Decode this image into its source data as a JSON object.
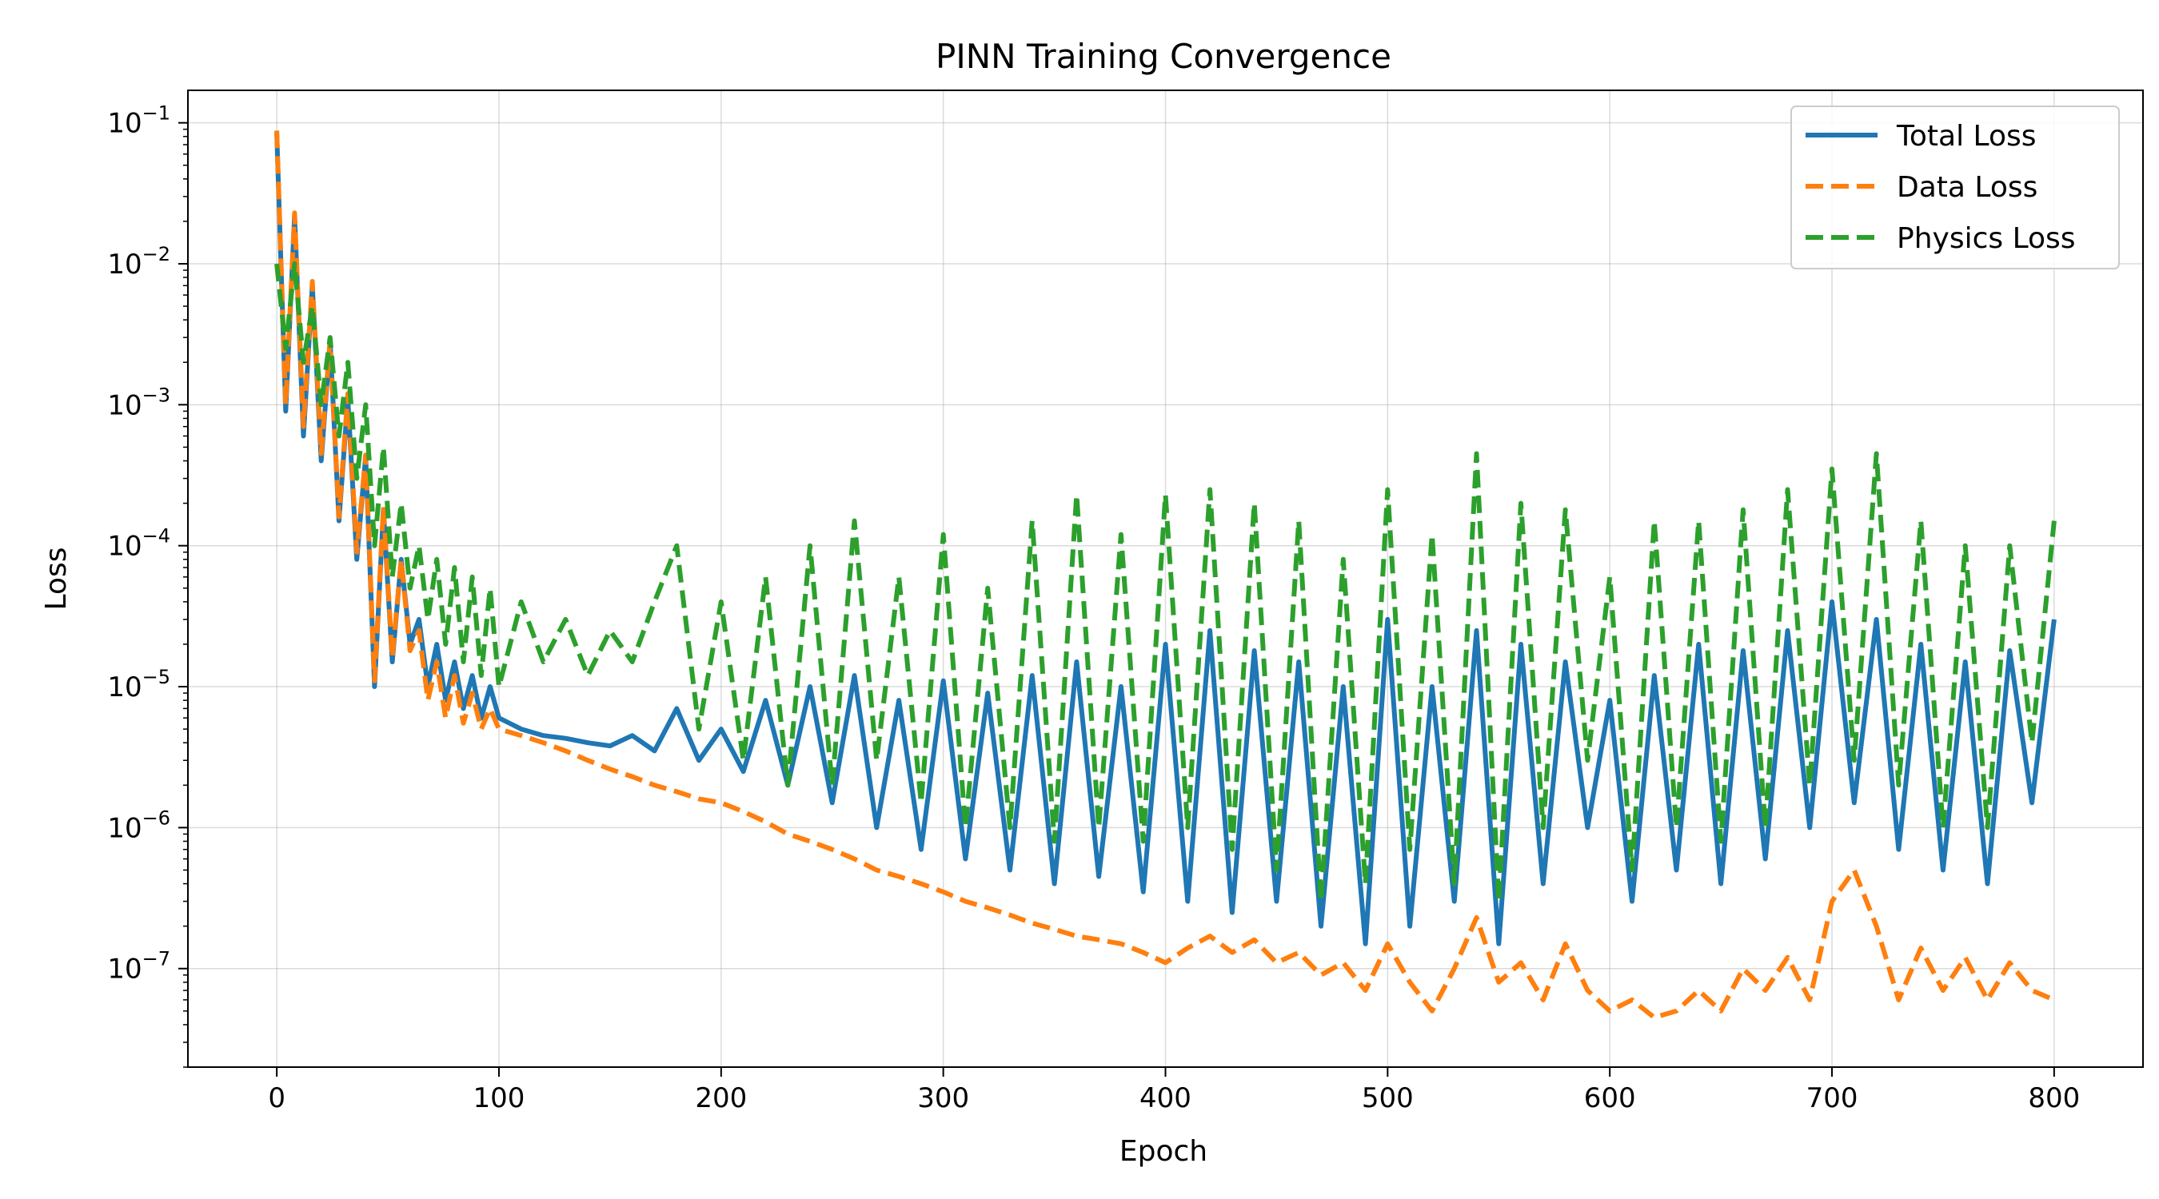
{
  "chart_data": {
    "type": "line",
    "title": "PINN Training Convergence",
    "xlabel": "Epoch",
    "ylabel": "Loss",
    "xlim": [
      -40,
      840
    ],
    "ylim": [
      2e-08,
      0.17
    ],
    "yscale": "log",
    "grid": true,
    "legend_position": "top-right",
    "x_ticks": [
      0,
      100,
      200,
      300,
      400,
      500,
      600,
      700,
      800
    ],
    "x_tick_labels": [
      "0",
      "100",
      "200",
      "300",
      "400",
      "500",
      "600",
      "700",
      "800"
    ],
    "y_ticks": [
      1e-07,
      1e-06,
      1e-05,
      0.0001,
      0.001,
      0.01,
      0.1
    ],
    "y_tick_labels": [
      {
        "base": "10",
        "exp": "−7"
      },
      {
        "base": "10",
        "exp": "−6"
      },
      {
        "base": "10",
        "exp": "−5"
      },
      {
        "base": "10",
        "exp": "−4"
      },
      {
        "base": "10",
        "exp": "−3"
      },
      {
        "base": "10",
        "exp": "−2"
      },
      {
        "base": "10",
        "exp": "−1"
      }
    ],
    "series": [
      {
        "name": "Total Loss",
        "color": "#1f77b4",
        "style": "solid",
        "x": [
          0,
          4,
          8,
          12,
          16,
          20,
          24,
          28,
          32,
          36,
          40,
          44,
          48,
          52,
          56,
          60,
          64,
          68,
          72,
          76,
          80,
          84,
          88,
          92,
          96,
          100,
          110,
          120,
          130,
          140,
          150,
          160,
          170,
          180,
          190,
          200,
          210,
          220,
          230,
          240,
          250,
          260,
          270,
          280,
          290,
          300,
          310,
          320,
          330,
          340,
          350,
          360,
          370,
          380,
          390,
          400,
          410,
          420,
          430,
          440,
          450,
          460,
          470,
          480,
          490,
          500,
          510,
          520,
          530,
          540,
          550,
          560,
          570,
          580,
          590,
          600,
          610,
          620,
          630,
          640,
          650,
          660,
          670,
          680,
          690,
          700,
          710,
          720,
          730,
          740,
          750,
          760,
          770,
          780,
          790,
          800
        ],
        "y": [
          0.085,
          0.0009,
          0.022,
          0.0006,
          0.007,
          0.0004,
          0.0028,
          0.00015,
          0.0011,
          8e-05,
          0.00043,
          1e-05,
          0.00018,
          1.5e-05,
          8e-05,
          2e-05,
          3e-05,
          1e-05,
          2e-05,
          8e-06,
          1.5e-05,
          7e-06,
          1.2e-05,
          6e-06,
          1e-05,
          6e-06,
          5e-06,
          4.5e-06,
          4.3e-06,
          4e-06,
          3.8e-06,
          4.5e-06,
          3.5e-06,
          7e-06,
          3e-06,
          5e-06,
          2.5e-06,
          8e-06,
          2e-06,
          1e-05,
          1.5e-06,
          1.2e-05,
          1e-06,
          8e-06,
          7e-07,
          1.1e-05,
          6e-07,
          9e-06,
          5e-07,
          1.2e-05,
          4e-07,
          1.5e-05,
          4.5e-07,
          1e-05,
          3.5e-07,
          2e-05,
          3e-07,
          2.5e-05,
          2.5e-07,
          1.8e-05,
          3e-07,
          1.5e-05,
          2e-07,
          1e-05,
          1.5e-07,
          3e-05,
          2e-07,
          1e-05,
          3e-07,
          2.5e-05,
          1.5e-07,
          2e-05,
          4e-07,
          1.5e-05,
          1e-06,
          8e-06,
          3e-07,
          1.2e-05,
          5e-07,
          2e-05,
          4e-07,
          1.8e-05,
          6e-07,
          2.5e-05,
          1e-06,
          4e-05,
          1.5e-06,
          3e-05,
          7e-07,
          2e-05,
          5e-07,
          1.5e-05,
          4e-07,
          1.8e-05,
          1.5e-06,
          3e-05
        ]
      },
      {
        "name": "Data Loss",
        "color": "#ff7f0e",
        "style": "dashed",
        "x": [
          0,
          4,
          8,
          12,
          16,
          20,
          24,
          28,
          32,
          36,
          40,
          44,
          48,
          52,
          56,
          60,
          64,
          68,
          72,
          76,
          80,
          84,
          88,
          92,
          96,
          100,
          110,
          120,
          130,
          140,
          150,
          160,
          170,
          180,
          190,
          200,
          210,
          220,
          230,
          240,
          250,
          260,
          270,
          280,
          290,
          300,
          310,
          320,
          330,
          340,
          350,
          360,
          370,
          380,
          390,
          400,
          410,
          420,
          430,
          440,
          450,
          460,
          470,
          480,
          490,
          500,
          510,
          520,
          530,
          540,
          550,
          560,
          570,
          580,
          590,
          600,
          610,
          620,
          630,
          640,
          650,
          660,
          670,
          680,
          690,
          700,
          710,
          720,
          730,
          740,
          750,
          760,
          770,
          780,
          790,
          800
        ],
        "y": [
          0.088,
          0.001,
          0.023,
          0.0007,
          0.0075,
          0.00045,
          0.0029,
          0.00016,
          0.0012,
          9e-05,
          0.00044,
          1.1e-05,
          0.00019,
          1.6e-05,
          8e-05,
          1.8e-05,
          2.5e-05,
          8e-06,
          1.5e-05,
          6e-06,
          1.2e-05,
          5.5e-06,
          9e-06,
          5e-06,
          7e-06,
          5e-06,
          4.5e-06,
          4e-06,
          3.5e-06,
          3e-06,
          2.6e-06,
          2.3e-06,
          2e-06,
          1.8e-06,
          1.6e-06,
          1.5e-06,
          1.3e-06,
          1.1e-06,
          9e-07,
          8e-07,
          7e-07,
          6e-07,
          5e-07,
          4.5e-07,
          4e-07,
          3.5e-07,
          3e-07,
          2.7e-07,
          2.4e-07,
          2.1e-07,
          1.9e-07,
          1.7e-07,
          1.6e-07,
          1.5e-07,
          1.3e-07,
          1.1e-07,
          1.4e-07,
          1.7e-07,
          1.3e-07,
          1.6e-07,
          1.1e-07,
          1.3e-07,
          9e-08,
          1.1e-07,
          7e-08,
          1.5e-07,
          8e-08,
          5e-08,
          1e-07,
          2.3e-07,
          8e-08,
          1.1e-07,
          6e-08,
          1.5e-07,
          7e-08,
          5e-08,
          6e-08,
          4.5e-08,
          5e-08,
          7e-08,
          5e-08,
          1e-07,
          7e-08,
          1.2e-07,
          6e-08,
          3e-07,
          5e-07,
          2e-07,
          6e-08,
          1.4e-07,
          7e-08,
          1.2e-07,
          6e-08,
          1.1e-07,
          7e-08,
          6e-08
        ]
      },
      {
        "name": "Physics Loss",
        "color": "#2ca02c",
        "style": "dashed",
        "x": [
          0,
          4,
          8,
          12,
          16,
          20,
          24,
          28,
          32,
          36,
          40,
          44,
          48,
          52,
          56,
          60,
          64,
          68,
          72,
          76,
          80,
          84,
          88,
          92,
          96,
          100,
          110,
          120,
          130,
          140,
          150,
          160,
          170,
          180,
          190,
          200,
          210,
          220,
          230,
          240,
          250,
          260,
          270,
          280,
          290,
          300,
          310,
          320,
          330,
          340,
          350,
          360,
          370,
          380,
          390,
          400,
          410,
          420,
          430,
          440,
          450,
          460,
          470,
          480,
          490,
          500,
          510,
          520,
          530,
          540,
          550,
          560,
          570,
          580,
          590,
          600,
          610,
          620,
          630,
          640,
          650,
          660,
          670,
          680,
          690,
          700,
          710,
          720,
          730,
          740,
          750,
          760,
          770,
          780,
          790,
          800
        ],
        "y": [
          0.01,
          0.0025,
          0.01,
          0.002,
          0.005,
          0.001,
          0.003,
          0.0006,
          0.002,
          0.0003,
          0.001,
          0.0001,
          0.0005,
          6e-05,
          0.0002,
          5e-05,
          0.0001,
          3e-05,
          8e-05,
          2e-05,
          7e-05,
          1.5e-05,
          6e-05,
          1.2e-05,
          5e-05,
          1e-05,
          4e-05,
          1.5e-05,
          3e-05,
          1.2e-05,
          2.5e-05,
          1.5e-05,
          4e-05,
          0.0001,
          5e-06,
          4e-05,
          3e-06,
          6e-05,
          2e-06,
          0.0001,
          2e-06,
          0.00015,
          3e-06,
          6e-05,
          1.5e-06,
          0.00012,
          1e-06,
          5e-05,
          1e-06,
          0.00015,
          8e-07,
          0.00023,
          1e-06,
          0.00012,
          8e-07,
          0.00023,
          1e-06,
          0.00025,
          7e-07,
          0.0002,
          5e-07,
          0.00015,
          3e-07,
          8e-05,
          4e-07,
          0.00025,
          7e-07,
          0.00012,
          4e-07,
          0.00045,
          3e-07,
          0.0002,
          1e-06,
          0.00018,
          3e-06,
          6e-05,
          5e-07,
          0.00015,
          1e-06,
          0.00015,
          8e-07,
          0.00018,
          1e-06,
          0.00025,
          2e-06,
          0.00035,
          3e-06,
          0.00045,
          2e-06,
          0.00015,
          1e-06,
          0.0001,
          1e-06,
          0.0001,
          4e-06,
          0.00015
        ]
      }
    ]
  }
}
